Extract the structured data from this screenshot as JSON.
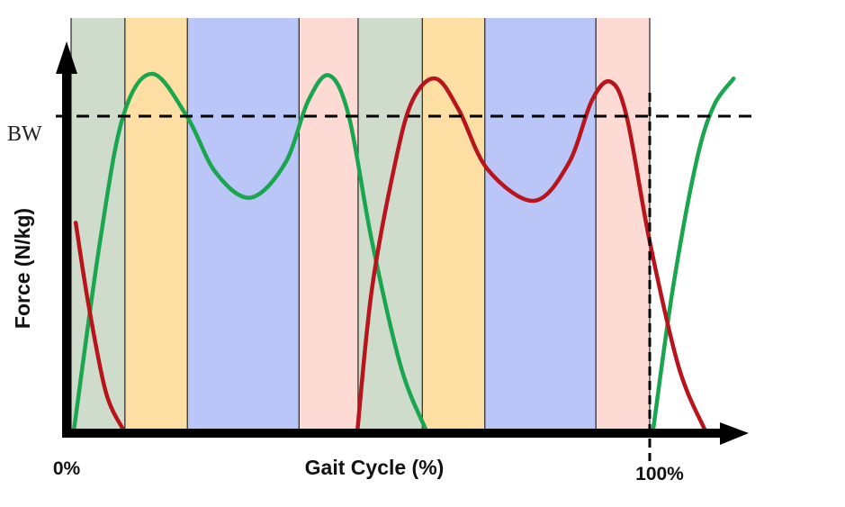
{
  "chart_data": {
    "type": "line",
    "title": "",
    "xlabel": "Gait Cycle (%)",
    "ylabel": "Force (N/kg)",
    "xlim": [
      0,
      118
    ],
    "ylim": [
      0,
      1.3
    ],
    "x_tick_labels": [
      {
        "value": 0,
        "label": "0%"
      },
      {
        "value": 100,
        "label": "100%"
      }
    ],
    "reference_lines": [
      {
        "orientation": "horizontal",
        "value": 1.0,
        "label": "BW",
        "style": "dashed"
      },
      {
        "orientation": "vertical",
        "value": 100,
        "label": "",
        "style": "dashed"
      }
    ],
    "phase_bands": [
      {
        "start": 0,
        "end": 9.3,
        "color": "#cfdccc"
      },
      {
        "start": 9.3,
        "end": 20.1,
        "color": "#fddea3"
      },
      {
        "start": 20.1,
        "end": 39.4,
        "color": "#bac6f8"
      },
      {
        "start": 39.4,
        "end": 49.6,
        "color": "#fddad3"
      },
      {
        "start": 49.6,
        "end": 60.7,
        "color": "#cfdccc"
      },
      {
        "start": 60.7,
        "end": 71.5,
        "color": "#fddea3"
      },
      {
        "start": 71.5,
        "end": 90.7,
        "color": "#bac6f8"
      },
      {
        "start": 90.7,
        "end": 100,
        "color": "#fddad3"
      }
    ],
    "series": [
      {
        "name": "green",
        "color": "#1aa64f",
        "segments": [
          [
            [
              0.5,
              0
            ],
            [
              5,
              0.6
            ],
            [
              9,
              1.0
            ],
            [
              14,
              1.135
            ],
            [
              20,
              1.0
            ],
            [
              25,
              0.82
            ],
            [
              31,
              0.74
            ],
            [
              37,
              0.85
            ],
            [
              41,
              1.05
            ],
            [
              44.6,
              1.13
            ],
            [
              48,
              1.0
            ],
            [
              52,
              0.6
            ],
            [
              57,
              0.2
            ],
            [
              61.3,
              0
            ]
          ],
          [
            [
              100.6,
              0
            ],
            [
              104,
              0.45
            ],
            [
              108,
              0.85
            ],
            [
              111,
              1.03
            ],
            [
              114.5,
              1.12
            ]
          ]
        ]
      },
      {
        "name": "red",
        "color": "#b8141c",
        "segments": [
          [
            [
              0.8,
              0.66
            ],
            [
              3,
              0.4
            ],
            [
              6,
              0.12
            ],
            [
              9,
              0
            ]
          ],
          [
            [
              49.5,
              0
            ],
            [
              52,
              0.45
            ],
            [
              56,
              0.85
            ],
            [
              59,
              1.05
            ],
            [
              63,
              1.12
            ],
            [
              67,
              1.02
            ],
            [
              72,
              0.83
            ],
            [
              80,
              0.73
            ],
            [
              86,
              0.85
            ],
            [
              90,
              1.05
            ],
            [
              93.2,
              1.11
            ],
            [
              96,
              1.0
            ],
            [
              100,
              0.6
            ],
            [
              105,
              0.2
            ],
            [
              109.5,
              0
            ]
          ]
        ]
      }
    ]
  }
}
